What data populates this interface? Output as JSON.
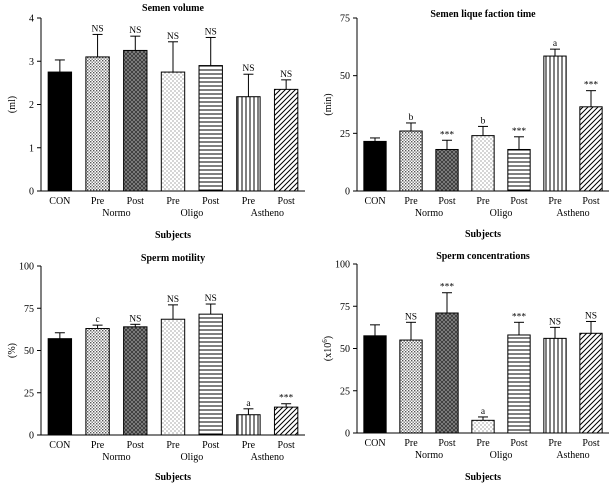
{
  "patterns": {
    "CON": "solid",
    "Normo Pre": "dots-fine",
    "Normo Post": "crosshatch",
    "Oligo Pre": "dots-sparse",
    "Oligo Post": "horizontal",
    "Astheno Pre": "vertical",
    "Astheno Post": "diagonal"
  },
  "chart_data": [
    {
      "type": "bar",
      "title": "Semen volume",
      "ylabel": "(ml)",
      "xlabel": "Subjects",
      "ylim": [
        0,
        4
      ],
      "yticks": [
        0,
        1,
        2,
        3,
        4
      ],
      "categories": [
        "CON",
        "Normo Pre",
        "Normo Post",
        "Oligo Pre",
        "Oligo Post",
        "Astheno Pre",
        "Astheno Post"
      ],
      "tick_labels": [
        "CON",
        "Pre",
        "Post",
        "Pre",
        "Post",
        "Pre",
        "Post"
      ],
      "group_labels": [
        "Normo",
        "Oligo",
        "Astheno"
      ],
      "values": [
        2.75,
        3.1,
        3.25,
        2.75,
        2.9,
        2.18,
        2.35
      ],
      "errors": [
        0.28,
        0.52,
        0.33,
        0.7,
        0.65,
        0.52,
        0.22
      ],
      "annotations": [
        "",
        "NS",
        "NS",
        "NS",
        "NS",
        "NS",
        "NS"
      ]
    },
    {
      "type": "bar",
      "title": "Semen lique faction time",
      "ylabel": "(min)",
      "xlabel": "Subjects",
      "ylim": [
        0,
        75
      ],
      "yticks": [
        0,
        25,
        50,
        75
      ],
      "categories": [
        "CON",
        "Normo Pre",
        "Normo Post",
        "Oligo Pre",
        "Oligo Post",
        "Astheno Pre",
        "Astheno Post"
      ],
      "tick_labels": [
        "CON",
        "Pre",
        "Post",
        "Pre",
        "Post",
        "Pre",
        "Post"
      ],
      "group_labels": [
        "Normo",
        "Oligo",
        "Astheno"
      ],
      "values": [
        21.5,
        26,
        18,
        24,
        18,
        58.5,
        36.5
      ],
      "errors": [
        1.5,
        3.5,
        4,
        4,
        5.5,
        3,
        7
      ],
      "annotations": [
        "",
        "b",
        "***",
        "b",
        "***",
        "a",
        "***"
      ]
    },
    {
      "type": "bar",
      "title": "Sperm motility",
      "ylabel": "(%)",
      "xlabel": "Subjects",
      "ylim": [
        0,
        100
      ],
      "yticks": [
        0,
        25,
        50,
        75,
        100
      ],
      "categories": [
        "CON",
        "Normo Pre",
        "Normo Post",
        "Oligo Pre",
        "Oligo Post",
        "Astheno Pre",
        "Astheno Post"
      ],
      "tick_labels": [
        "CON",
        "Pre",
        "Post",
        "Pre",
        "Post",
        "Pre",
        "Post"
      ],
      "group_labels": [
        "Normo",
        "Oligo",
        "Astheno"
      ],
      "values": [
        57,
        63,
        64,
        68.5,
        71.5,
        12,
        16.5
      ],
      "errors": [
        3.5,
        2,
        1.5,
        8.5,
        6,
        3.5,
        2
      ],
      "annotations": [
        "",
        "c",
        "NS",
        "NS",
        "NS",
        "a",
        "***"
      ]
    },
    {
      "type": "bar",
      "title": "Sperm concentrations",
      "ylabel": "(x10",
      "ylabel_sup": "6",
      "ylabel_end": ")",
      "xlabel": "Subjects",
      "ylim": [
        0,
        100
      ],
      "yticks": [
        0,
        25,
        50,
        75,
        100
      ],
      "categories": [
        "CON",
        "Normo Pre",
        "Normo Post",
        "Oligo Pre",
        "Oligo Post",
        "Astheno Pre",
        "Astheno Post"
      ],
      "tick_labels": [
        "CON",
        "Pre",
        "Post",
        "Pre",
        "Post",
        "Pre",
        "Post"
      ],
      "group_labels": [
        "Normo",
        "Oligo",
        "Astheno"
      ],
      "values": [
        57.5,
        55,
        71,
        7.5,
        58,
        56,
        59
      ],
      "errors": [
        6.5,
        10.5,
        12,
        2,
        7.5,
        6.5,
        7
      ],
      "annotations": [
        "",
        "NS",
        "***",
        "a",
        "***",
        "NS",
        "NS"
      ]
    }
  ]
}
